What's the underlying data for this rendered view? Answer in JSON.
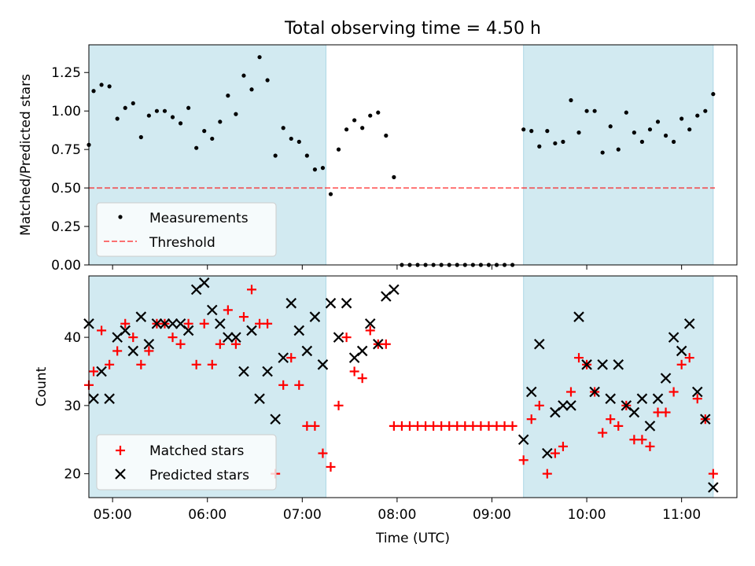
{
  "title": "Total observing time = 4.50 h",
  "colors": {
    "shade": "#add8e6",
    "measure": "#000000",
    "threshold": "#ff0000",
    "matched": "#ff0000",
    "predicted": "#000000"
  },
  "chart_data": [
    {
      "type": "scatter",
      "panel": "top",
      "title": "Total observing time = 4.50 h",
      "xlabel": "",
      "ylabel": "Matched/Predicted stars",
      "xlim": [
        "04:45",
        "11:35"
      ],
      "ylim": [
        0,
        1.43
      ],
      "y_ticks": [
        0.0,
        0.25,
        0.5,
        0.75,
        1.0,
        1.25
      ],
      "y_tick_labels": [
        "0.00",
        "0.25",
        "0.50",
        "0.75",
        "1.00",
        "1.25"
      ],
      "x_ticks": [
        "05:00",
        "06:00",
        "07:00",
        "08:00",
        "09:00",
        "10:00",
        "11:00"
      ],
      "shaded_intervals": [
        [
          "04:45",
          "07:15"
        ],
        [
          "09:20",
          "11:20"
        ]
      ],
      "threshold": 0.5,
      "legend": {
        "placement": "lower-left",
        "entries": [
          "Measurements",
          "Threshold"
        ]
      },
      "series": [
        {
          "name": "Measurements",
          "x": [
            "04:45",
            "04:48",
            "04:53",
            "04:58",
            "05:03",
            "05:08",
            "05:13",
            "05:18",
            "05:23",
            "05:28",
            "05:33",
            "05:38",
            "05:43",
            "05:48",
            "05:53",
            "05:58",
            "06:03",
            "06:08",
            "06:13",
            "06:18",
            "06:23",
            "06:28",
            "06:33",
            "06:38",
            "06:43",
            "06:48",
            "06:53",
            "06:58",
            "07:03",
            "07:08",
            "07:13",
            "07:18",
            "07:23",
            "07:28",
            "07:33",
            "07:38",
            "07:43",
            "07:48",
            "07:53",
            "07:58",
            "08:03",
            "08:08",
            "08:13",
            "08:18",
            "08:23",
            "08:28",
            "08:33",
            "08:38",
            "08:43",
            "08:48",
            "08:53",
            "08:58",
            "09:03",
            "09:08",
            "09:13",
            "09:20",
            "09:25",
            "09:30",
            "09:35",
            "09:40",
            "09:45",
            "09:50",
            "09:55",
            "10:00",
            "10:05",
            "10:10",
            "10:15",
            "10:20",
            "10:25",
            "10:30",
            "10:35",
            "10:40",
            "10:45",
            "10:50",
            "10:55",
            "11:00",
            "11:05",
            "11:10",
            "11:15",
            "11:20"
          ],
          "y": [
            0.78,
            1.13,
            1.17,
            1.16,
            0.95,
            1.02,
            1.05,
            0.83,
            0.97,
            1.0,
            1.0,
            0.96,
            0.92,
            1.02,
            0.76,
            0.87,
            0.82,
            0.93,
            1.1,
            0.98,
            1.23,
            1.14,
            1.35,
            1.2,
            0.71,
            0.89,
            0.82,
            0.8,
            0.71,
            0.62,
            0.63,
            0.46,
            0.75,
            0.88,
            0.94,
            0.89,
            0.97,
            0.99,
            0.84,
            0.57,
            0,
            0,
            0,
            0,
            0,
            0,
            0,
            0,
            0,
            0,
            0,
            0,
            0,
            0,
            0,
            0.88,
            0.87,
            0.77,
            0.87,
            0.79,
            0.8,
            1.07,
            0.86,
            1.0,
            1.0,
            0.73,
            0.9,
            0.75,
            0.99,
            0.86,
            0.8,
            0.88,
            0.93,
            0.84,
            0.8,
            0.95,
            0.88,
            0.97,
            1.0,
            1.11
          ]
        }
      ]
    },
    {
      "type": "scatter",
      "panel": "bottom",
      "xlabel": "Time (UTC)",
      "ylabel": "Count",
      "xlim": [
        "04:45",
        "11:35"
      ],
      "ylim": [
        16.5,
        49
      ],
      "y_ticks": [
        20,
        30,
        40
      ],
      "y_tick_labels": [
        "20",
        "30",
        "40"
      ],
      "x_ticks": [
        "05:00",
        "06:00",
        "07:00",
        "08:00",
        "09:00",
        "10:00",
        "11:00"
      ],
      "x_tick_labels": [
        "05:00",
        "06:00",
        "07:00",
        "08:00",
        "09:00",
        "10:00",
        "11:00"
      ],
      "shaded_intervals": [
        [
          "04:45",
          "07:15"
        ],
        [
          "09:20",
          "11:20"
        ]
      ],
      "legend": {
        "placement": "lower-left",
        "entries": [
          "Matched stars",
          "Predicted stars"
        ]
      },
      "series": [
        {
          "name": "Matched stars",
          "x": [
            "04:45",
            "04:48",
            "04:53",
            "04:58",
            "05:03",
            "05:08",
            "05:13",
            "05:18",
            "05:23",
            "05:28",
            "05:33",
            "05:38",
            "05:43",
            "05:48",
            "05:53",
            "05:58",
            "06:03",
            "06:08",
            "06:13",
            "06:18",
            "06:23",
            "06:28",
            "06:33",
            "06:38",
            "06:43",
            "06:48",
            "06:53",
            "06:58",
            "07:03",
            "07:08",
            "07:13",
            "07:18",
            "07:23",
            "07:28",
            "07:33",
            "07:38",
            "07:43",
            "07:48",
            "07:53",
            "07:58",
            "08:03",
            "08:08",
            "08:13",
            "08:18",
            "08:23",
            "08:28",
            "08:33",
            "08:38",
            "08:43",
            "08:48",
            "08:53",
            "08:58",
            "09:03",
            "09:08",
            "09:13",
            "09:20",
            "09:25",
            "09:30",
            "09:35",
            "09:40",
            "09:45",
            "09:50",
            "09:55",
            "10:00",
            "10:05",
            "10:10",
            "10:15",
            "10:20",
            "10:25",
            "10:30",
            "10:35",
            "10:40",
            "10:45",
            "10:50",
            "10:55",
            "11:00",
            "11:05",
            "11:10",
            "11:15",
            "11:20"
          ],
          "y": [
            33,
            35,
            41,
            36,
            38,
            42,
            40,
            36,
            38,
            42,
            42,
            40,
            39,
            42,
            36,
            42,
            36,
            39,
            44,
            39,
            43,
            47,
            42,
            42,
            20,
            33,
            37,
            33,
            27,
            27,
            23,
            21,
            30,
            40,
            35,
            34,
            41,
            39,
            39,
            27,
            27,
            27,
            27,
            27,
            27,
            27,
            27,
            27,
            27,
            27,
            27,
            27,
            27,
            27,
            27,
            22,
            28,
            30,
            20,
            23,
            24,
            32,
            37,
            36,
            32,
            26,
            28,
            27,
            30,
            25,
            25,
            24,
            29,
            29,
            32,
            36,
            37,
            31,
            28,
            20
          ]
        },
        {
          "name": "Predicted stars",
          "x": [
            "04:45",
            "04:48",
            "04:53",
            "04:58",
            "05:03",
            "05:08",
            "05:13",
            "05:18",
            "05:23",
            "05:28",
            "05:33",
            "05:38",
            "05:43",
            "05:48",
            "05:53",
            "05:58",
            "06:03",
            "06:08",
            "06:13",
            "06:18",
            "06:23",
            "06:28",
            "06:33",
            "06:38",
            "06:43",
            "06:48",
            "06:53",
            "06:58",
            "07:03",
            "07:08",
            "07:13",
            "07:18",
            "07:23",
            "07:28",
            "07:33",
            "07:38",
            "07:43",
            "07:48",
            "07:53",
            "07:58",
            "09:20",
            "09:25",
            "09:30",
            "09:35",
            "09:40",
            "09:45",
            "09:50",
            "09:55",
            "10:00",
            "10:05",
            "10:10",
            "10:15",
            "10:20",
            "10:25",
            "10:30",
            "10:35",
            "10:40",
            "10:45",
            "10:50",
            "10:55",
            "11:00",
            "11:05",
            "11:10",
            "11:15",
            "11:20"
          ],
          "y": [
            42,
            31,
            35,
            31,
            40,
            41,
            38,
            43,
            39,
            42,
            42,
            42,
            42,
            41,
            47,
            48,
            44,
            42,
            40,
            40,
            35,
            41,
            31,
            35,
            28,
            37,
            45,
            41,
            38,
            43,
            36,
            45,
            40,
            45,
            37,
            38,
            42,
            39,
            46,
            47,
            25,
            32,
            39,
            23,
            29,
            30,
            30,
            43,
            36,
            32,
            36,
            31,
            36,
            30,
            29,
            31,
            27,
            31,
            34,
            40,
            38,
            42,
            32,
            28,
            18
          ]
        }
      ]
    }
  ]
}
